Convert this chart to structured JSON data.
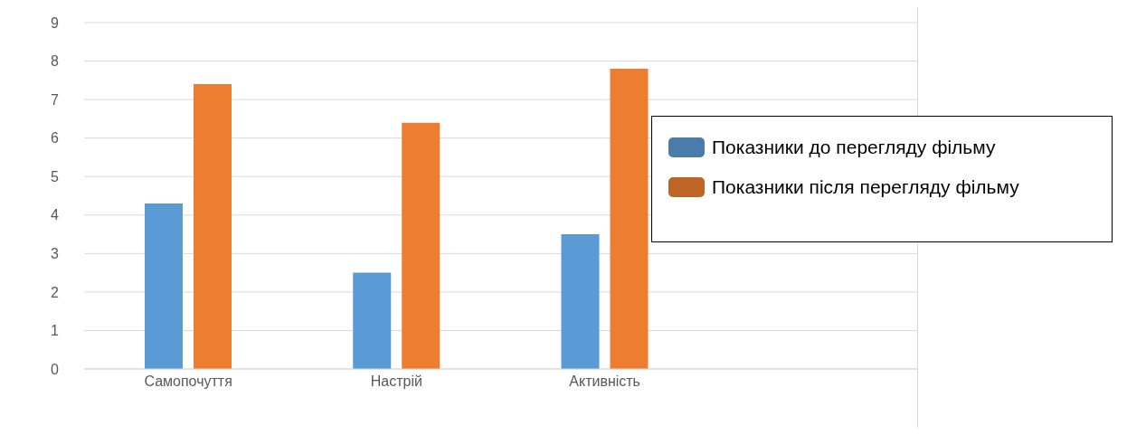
{
  "chart_data": {
    "type": "bar",
    "categories": [
      "Самопочуття",
      "Настрій",
      "Активність",
      null
    ],
    "series": [
      {
        "name": "Показники до перегляду фільму",
        "color": "#5b9bd5",
        "values": [
          4.3,
          2.5,
          3.5,
          null
        ]
      },
      {
        "name": "Показники після перегляду фільму",
        "color": "#ed7d31",
        "values": [
          7.4,
          6.4,
          7.8,
          null
        ]
      }
    ],
    "ylim": [
      0,
      9
    ],
    "yticks": [
      0,
      1,
      2,
      3,
      4,
      5,
      6,
      7,
      8,
      9
    ],
    "grid": "y",
    "legend": "right"
  }
}
